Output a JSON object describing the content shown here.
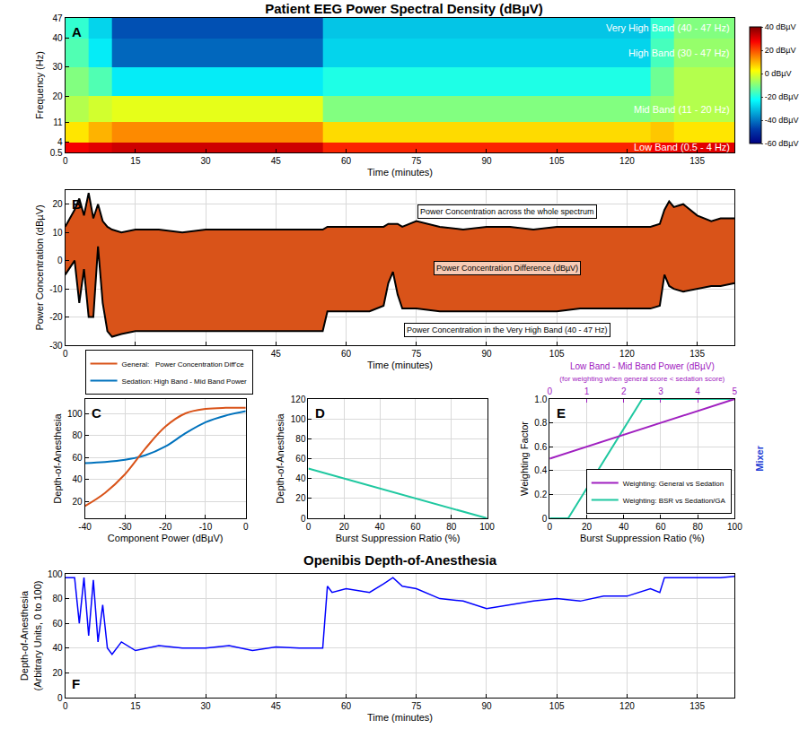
{
  "chart_data": [
    {
      "label": "A",
      "type": "heatmap",
      "title": "Patient EEG Power Spectral Density (dBµV)",
      "x_label": "Time (minutes)",
      "y_label": "Frequency (Hz)",
      "x_edges": [
        0,
        5,
        10,
        15,
        20,
        25,
        30,
        35,
        40,
        45,
        50,
        55,
        60,
        65,
        70,
        75,
        80,
        85,
        90,
        95,
        100,
        105,
        110,
        115,
        120,
        125,
        130,
        135,
        140,
        145
      ],
      "y_edges": [
        0.5,
        4,
        11,
        20,
        30,
        40,
        47
      ],
      "z": [
        [
          28,
          30,
          32,
          32,
          32,
          32,
          32,
          32,
          32,
          32,
          32,
          24,
          24,
          24,
          24,
          24,
          24,
          24,
          24,
          24,
          24,
          24,
          24,
          24,
          24,
          28,
          30,
          30,
          30
        ],
        [
          5,
          10,
          14,
          14,
          14,
          14,
          14,
          14,
          14,
          14,
          14,
          6,
          6,
          6,
          6,
          6,
          6,
          6,
          6,
          6,
          6,
          6,
          6,
          6,
          6,
          8,
          5,
          5,
          5
        ],
        [
          -5,
          -2,
          0,
          0,
          0,
          0,
          0,
          0,
          0,
          0,
          0,
          -10,
          -10,
          -10,
          -10,
          -10,
          -10,
          -10,
          -10,
          -10,
          -10,
          -10,
          -10,
          -10,
          -10,
          -8,
          -5,
          -5,
          -5
        ],
        [
          -10,
          -15,
          -25,
          -25,
          -25,
          -25,
          -25,
          -25,
          -25,
          -25,
          -25,
          -20,
          -20,
          -20,
          -20,
          -20,
          -20,
          -20,
          -20,
          -20,
          -20,
          -20,
          -20,
          -20,
          -20,
          -12,
          -5,
          -5,
          -5
        ],
        [
          -15,
          -25,
          -42,
          -42,
          -42,
          -42,
          -42,
          -42,
          -42,
          -42,
          -42,
          -28,
          -28,
          -28,
          -28,
          -28,
          -28,
          -28,
          -28,
          -28,
          -28,
          -28,
          -28,
          -28,
          -28,
          -16,
          -8,
          -8,
          -8
        ],
        [
          -18,
          -28,
          -45,
          -45,
          -45,
          -45,
          -45,
          -45,
          -45,
          -45,
          -45,
          -30,
          -30,
          -30,
          -30,
          -30,
          -30,
          -30,
          -30,
          -30,
          -30,
          -30,
          -30,
          -30,
          -30,
          -18,
          -10,
          -10,
          -10
        ]
      ],
      "xlim": [
        0,
        143
      ],
      "xticks": [
        0,
        15,
        30,
        45,
        60,
        75,
        90,
        105,
        120,
        135
      ],
      "ylim": [
        0.5,
        47
      ],
      "yticks": [
        0.5,
        4,
        11,
        20,
        30,
        40,
        47
      ],
      "colorbar": {
        "range": [
          -60,
          40
        ],
        "ticks": [
          {
            "value": -60,
            "label": "-60 dBµV"
          },
          {
            "value": -40,
            "label": "-40 dBµV"
          },
          {
            "value": -20,
            "label": "-20 dBµV"
          },
          {
            "value": 0,
            "label": "0 dBµV"
          },
          {
            "value": 20,
            "label": "20 dBµV"
          },
          {
            "value": 40,
            "label": "40 dBµV"
          }
        ]
      },
      "annotations": [
        "Very High Band (40 - 47 Hz)",
        "High Band (30 - 47 Hz)",
        "Mid Band (11 - 20 Hz)",
        "Low Band (0.5 - 4 Hz)"
      ],
      "grid": false
    },
    {
      "label": "B",
      "type": "line",
      "color": "#d95319",
      "x_label": "Time (minutes)",
      "y_label": "Power Concentration (dBµV)",
      "x": [
        0,
        2,
        3,
        4,
        5,
        6,
        7,
        8,
        9,
        10,
        12,
        15,
        20,
        25,
        30,
        35,
        40,
        45,
        50,
        55,
        56,
        57,
        60,
        65,
        68,
        69,
        70,
        71,
        72,
        75,
        80,
        85,
        90,
        95,
        100,
        105,
        110,
        115,
        120,
        125,
        127,
        128,
        129,
        130,
        132,
        135,
        138,
        140,
        143
      ],
      "series": [
        {
          "name": "Power Concentration across the whole spectrum",
          "color": "#000000",
          "values": [
            12,
            18,
            22,
            16,
            24,
            15,
            20,
            14,
            12,
            11,
            10,
            11,
            11,
            10,
            11,
            11,
            11,
            11,
            11,
            11,
            12,
            12,
            12,
            12,
            12,
            13,
            13,
            13,
            12,
            14,
            12,
            11,
            12,
            12,
            11,
            12,
            12,
            12,
            12,
            12,
            13,
            18,
            21,
            19,
            20,
            16,
            14,
            15,
            15
          ]
        },
        {
          "name": "Power Concentration in the Very High Band (40 - 47 Hz)",
          "color": "#000000",
          "values": [
            -5,
            0,
            -15,
            -3,
            -20,
            -20,
            5,
            -15,
            -25,
            -27,
            -26,
            -25,
            -25,
            -25,
            -25,
            -25,
            -25,
            -25,
            -25,
            -25,
            -18,
            -18,
            -18,
            -18,
            -16,
            -8,
            -4,
            -12,
            -17,
            -17,
            -18,
            -18,
            -18,
            -18,
            -18,
            -18,
            -17,
            -17,
            -17,
            -17,
            -16,
            -5,
            -9,
            -10,
            -11,
            -10,
            -9,
            -9,
            -8
          ]
        }
      ],
      "annotations": [
        "Power Concentration Difference (dBµV)"
      ],
      "xlim": [
        0,
        143
      ],
      "xticks": [
        0,
        15,
        30,
        45,
        60,
        75,
        90,
        105,
        120,
        135
      ],
      "ylim": [
        -30,
        25
      ],
      "yticks": [
        -30,
        -20,
        -10,
        0,
        10,
        20
      ],
      "grid": true
    },
    {
      "label": "C",
      "type": "line",
      "x_label": "Component Power (dBµV)",
      "y_label": "Depth-of-Anesthesia",
      "series": [
        {
          "name": "Sedation: High Band - Mid Band Power",
          "color": "#0072bd",
          "x": [
            -40,
            -35,
            -30,
            -25,
            -20,
            -15,
            -10,
            -5,
            0
          ],
          "values": [
            55,
            56,
            58,
            62,
            70,
            82,
            92,
            98,
            102
          ]
        },
        {
          "name": "General:   Power Concentration Diff'ce",
          "color": "#d95319",
          "x": [
            -40,
            -35,
            -30,
            -25,
            -20,
            -15,
            -10,
            -5,
            0
          ],
          "values": [
            16,
            28,
            45,
            68,
            88,
            100,
            104,
            105,
            105
          ]
        }
      ],
      "xlim": [
        -40,
        0
      ],
      "xticks": [
        -40,
        -30,
        -20,
        -10,
        0
      ],
      "ylim": [
        5,
        113
      ],
      "yticks": [
        20,
        40,
        60,
        80,
        100
      ],
      "legend": "top",
      "grid": true
    },
    {
      "label": "D",
      "type": "line",
      "x_label": "Burst Suppression Ratio (%)",
      "y_label": "Depth-of-Anesthesia",
      "color": "#1fc8a0",
      "x": [
        0,
        100
      ],
      "values": [
        50,
        0
      ],
      "xlim": [
        0,
        100
      ],
      "xticks": [
        0,
        20,
        40,
        60,
        80,
        100
      ],
      "ylim": [
        0,
        120
      ],
      "yticks": [
        0,
        20,
        40,
        60,
        80,
        100,
        120
      ],
      "grid": true
    },
    {
      "label": "E",
      "type": "line",
      "x_label": "Burst Suppression Ratio (%)",
      "y_label": "Weighting Factor",
      "x2_label": "Low Band - Mid Band Power (dBµV)",
      "x2_sublabel": "(for weighting when general score < sedation score)",
      "series": [
        {
          "name": "Weighting: General vs Sedation",
          "color": "#a020c0",
          "axis": "x2",
          "x": [
            0,
            5
          ],
          "values": [
            0.5,
            1
          ]
        },
        {
          "name": "Weighting: BSR vs Sedation/GA",
          "color": "#1fc8a0",
          "x": [
            0,
            10,
            50,
            100
          ],
          "values": [
            0,
            0,
            1,
            1
          ]
        }
      ],
      "xlim": [
        0,
        100
      ],
      "xticks": [
        0,
        20,
        40,
        60,
        80,
        100
      ],
      "x2lim": [
        0,
        5
      ],
      "x2ticks": [
        0,
        1,
        2,
        3,
        4,
        5
      ],
      "ylim": [
        0,
        1
      ],
      "yticks": [
        0,
        0.2,
        0.4,
        0.6,
        0.8,
        {
          "value": 1,
          "label": "1.0"
        }
      ],
      "annotations": [
        "Mixer"
      ],
      "legend": "lower right",
      "grid": true
    },
    {
      "label": "F",
      "type": "line",
      "title": "Openibis Depth-of-Anesthesia",
      "x_label": "Time (minutes)",
      "y_label": [
        "Depth-of-Anesthesia",
        "(Arbitrary Units, 0 to 100)"
      ],
      "color": "#0000ff",
      "x": [
        0,
        2,
        3,
        4,
        5,
        6,
        7,
        8,
        9,
        10,
        12,
        15,
        20,
        25,
        30,
        35,
        40,
        45,
        50,
        55,
        56,
        57,
        60,
        65,
        68,
        70,
        72,
        75,
        80,
        85,
        90,
        95,
        100,
        105,
        110,
        115,
        120,
        125,
        127,
        128,
        130,
        135,
        140,
        143
      ],
      "values": [
        97,
        97,
        60,
        97,
        50,
        95,
        45,
        75,
        40,
        35,
        45,
        38,
        42,
        40,
        40,
        42,
        38,
        41,
        40,
        40,
        90,
        85,
        88,
        85,
        92,
        97,
        90,
        88,
        80,
        78,
        72,
        75,
        78,
        80,
        78,
        82,
        82,
        88,
        85,
        97,
        97,
        97,
        97,
        98
      ],
      "xlim": [
        0,
        143
      ],
      "xticks": [
        0,
        15,
        30,
        45,
        60,
        75,
        90,
        105,
        120,
        135
      ],
      "ylim": [
        0,
        100
      ],
      "yticks": [
        0,
        20,
        40,
        60,
        80,
        100
      ],
      "grid": true
    }
  ]
}
